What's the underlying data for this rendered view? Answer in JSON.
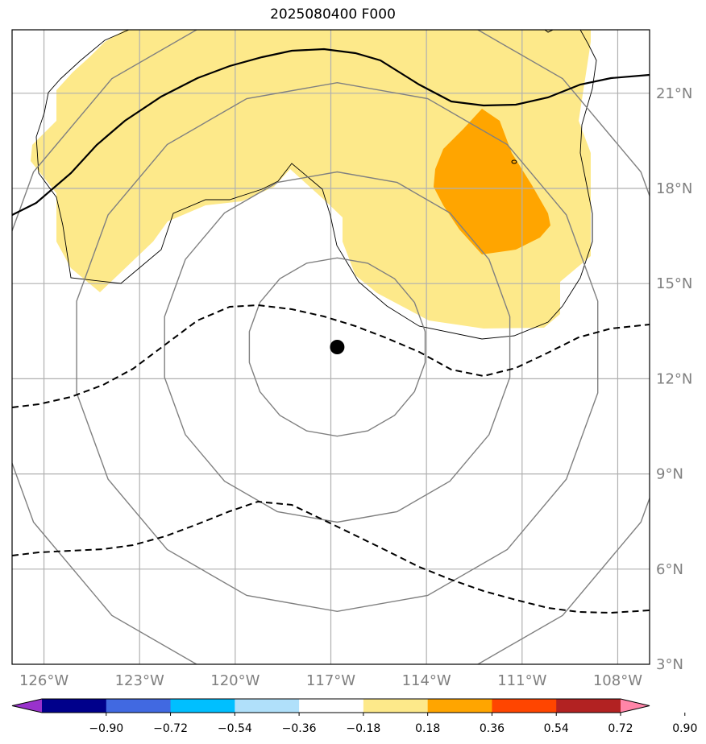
{
  "title": "2025080400 F000",
  "map": {
    "lon_range": [
      -127,
      -107
    ],
    "lat_range": [
      3,
      23
    ],
    "grid": true,
    "storm_center": {
      "lon": -116.8,
      "lat": 13.0
    },
    "range_rings_deg": [
      2.8,
      5.5,
      8.3,
      11.0
    ],
    "x_ticks": [
      {
        "lon": -126,
        "label": "126°W"
      },
      {
        "lon": -123,
        "label": "123°W"
      },
      {
        "lon": -120,
        "label": "120°W"
      },
      {
        "lon": -117,
        "label": "117°W"
      },
      {
        "lon": -114,
        "label": "114°W"
      },
      {
        "lon": -111,
        "label": "111°W"
      },
      {
        "lon": -108,
        "label": "108°W"
      }
    ],
    "y_ticks": [
      {
        "lat": 21,
        "label": "21°N"
      },
      {
        "lat": 18,
        "label": "18°N"
      },
      {
        "lat": 15,
        "label": "15°N"
      },
      {
        "lat": 12,
        "label": "12°N"
      },
      {
        "lat": 9,
        "label": "9°N"
      },
      {
        "lat": 6,
        "label": "6°N"
      },
      {
        "lat": 3,
        "label": "3°N"
      }
    ],
    "fill_colors": {
      "level_018_036": "#fde98a",
      "level_036_054": "#ffa500"
    },
    "line_colors": {
      "grid": "#b0b0b0",
      "rings": "#808080",
      "contours": "#000000"
    }
  },
  "colorbar": {
    "colors": [
      "#9932cc",
      "#00008b",
      "#4169e1",
      "#00bfff",
      "#b0e0fa",
      "#ffffff",
      "#fde98a",
      "#ffa500",
      "#ff4500",
      "#b22222",
      "#ff85a8"
    ],
    "tick_labels": [
      "−0.90",
      "−0.72",
      "−0.54",
      "−0.36",
      "−0.18",
      "0.18",
      "0.36",
      "0.54",
      "0.72",
      "0.90"
    ]
  }
}
